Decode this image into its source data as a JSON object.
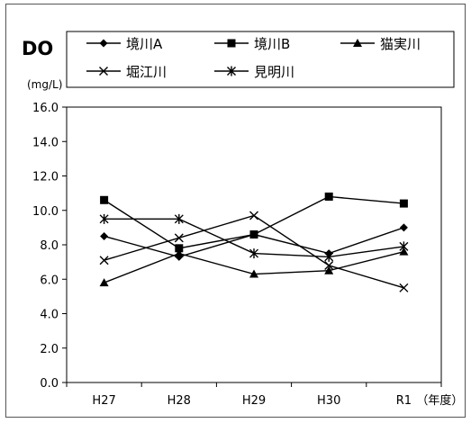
{
  "chart_data": {
    "type": "line",
    "title": "DO",
    "ylabel": "(mg/L)",
    "xlabel": "",
    "x_suffix": "（年度）",
    "categories": [
      "H27",
      "H28",
      "H29",
      "H30",
      "R1"
    ],
    "ylim": [
      0,
      16
    ],
    "yticks": [
      "0.0",
      "2.0",
      "4.0",
      "6.0",
      "8.0",
      "10.0",
      "12.0",
      "14.0",
      "16.0"
    ],
    "grid": false,
    "legend": "top",
    "series": [
      {
        "name": "境川A",
        "marker": "diamond",
        "color": "#000000",
        "values": [
          8.5,
          7.3,
          8.6,
          7.5,
          9.0
        ]
      },
      {
        "name": "境川B",
        "marker": "square",
        "color": "#000000",
        "values": [
          10.6,
          7.8,
          8.6,
          10.8,
          10.4
        ]
      },
      {
        "name": "猫実川",
        "marker": "triangle",
        "color": "#000000",
        "values": [
          5.8,
          7.5,
          6.3,
          6.5,
          7.6
        ]
      },
      {
        "name": "堀江川",
        "marker": "x",
        "color": "#000000",
        "values": [
          7.1,
          8.4,
          9.7,
          6.8,
          5.5
        ]
      },
      {
        "name": "見明川",
        "marker": "asterisk",
        "color": "#000000",
        "values": [
          9.5,
          9.5,
          7.5,
          7.3,
          7.9
        ]
      }
    ]
  }
}
